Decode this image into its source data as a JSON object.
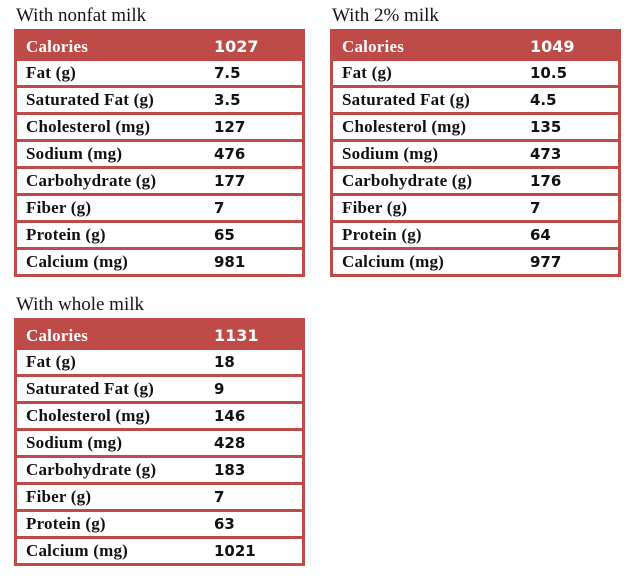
{
  "colors": {
    "accent": "#BE4B48",
    "header_text": "#FFFFFF",
    "body_text": "#111111",
    "row_background": "#FFFFFF",
    "page_background": "#FFFFFF"
  },
  "chart_data": [
    {
      "type": "table",
      "title": "With nonfat milk",
      "header": {
        "label": "Calories",
        "value": "1027"
      },
      "rows": [
        {
          "label": "Fat (g)",
          "value": "7.5"
        },
        {
          "label": "Saturated Fat (g)",
          "value": "3.5"
        },
        {
          "label": "Cholesterol (mg)",
          "value": "127"
        },
        {
          "label": "Sodium (mg)",
          "value": "476"
        },
        {
          "label": "Carbohydrate (g)",
          "value": "177"
        },
        {
          "label": "Fiber (g)",
          "value": "7"
        },
        {
          "label": "Protein (g)",
          "value": "65"
        },
        {
          "label": "Calcium (mg)",
          "value": "981"
        }
      ]
    },
    {
      "type": "table",
      "title": "With 2% milk",
      "header": {
        "label": "Calories",
        "value": "1049"
      },
      "rows": [
        {
          "label": "Fat (g)",
          "value": "10.5"
        },
        {
          "label": "Saturated Fat (g)",
          "value": "4.5"
        },
        {
          "label": "Cholesterol (mg)",
          "value": "135"
        },
        {
          "label": "Sodium (mg)",
          "value": "473"
        },
        {
          "label": "Carbohydrate (g)",
          "value": "176"
        },
        {
          "label": "Fiber (g)",
          "value": "7"
        },
        {
          "label": "Protein (g)",
          "value": "64"
        },
        {
          "label": "Calcium (mg)",
          "value": "977"
        }
      ]
    },
    {
      "type": "table",
      "title": "With whole milk",
      "header": {
        "label": "Calories",
        "value": "1131"
      },
      "rows": [
        {
          "label": "Fat (g)",
          "value": "18"
        },
        {
          "label": "Saturated Fat (g)",
          "value": "9"
        },
        {
          "label": "Cholesterol (mg)",
          "value": "146"
        },
        {
          "label": "Sodium (mg)",
          "value": "428"
        },
        {
          "label": "Carbohydrate (g)",
          "value": "183"
        },
        {
          "label": "Fiber (g)",
          "value": "7"
        },
        {
          "label": "Protein (g)",
          "value": "63"
        },
        {
          "label": "Calcium (mg)",
          "value": "1021"
        }
      ]
    }
  ]
}
